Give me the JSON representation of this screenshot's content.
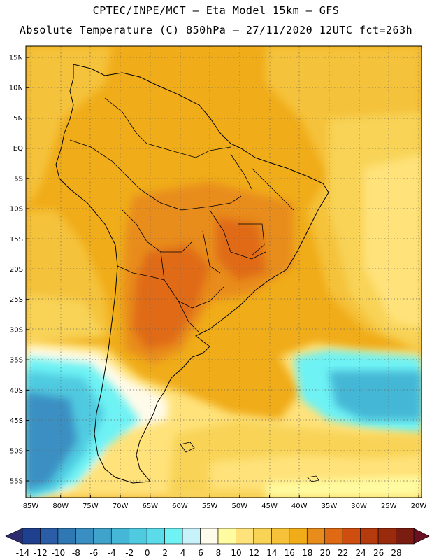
{
  "header": {
    "title_line1": "CPTEC/INPE/MCT –  Eta Model 15km – GFS",
    "title_line2": "Absolute Temperature (C) 850hPa – 27/11/2020 12UTC fct=263h"
  },
  "map": {
    "lat_labels": [
      "15N",
      "10N",
      "5N",
      "EQ",
      "5S",
      "10S",
      "15S",
      "20S",
      "25S",
      "30S",
      "35S",
      "40S",
      "45S",
      "50S",
      "55S"
    ],
    "lon_labels": [
      "85W",
      "80W",
      "75W",
      "70W",
      "65W",
      "60W",
      "55W",
      "50W",
      "45W",
      "40W",
      "35W",
      "30W",
      "25W",
      "20W"
    ],
    "region": "South America"
  },
  "colorbar": {
    "labels": [
      "-14",
      "-12",
      "-10",
      "-8",
      "-6",
      "-4",
      "-2",
      "0",
      "2",
      "4",
      "6",
      "8",
      "10",
      "12",
      "14",
      "16",
      "18",
      "20",
      "22",
      "24",
      "26",
      "28"
    ],
    "colors": [
      "#1f3f8f",
      "#2a5da6",
      "#2f78b4",
      "#3a8fc2",
      "#3fa3cc",
      "#45b7d6",
      "#4fcae0",
      "#5cdcea",
      "#6ef2f4",
      "#c8f2fa",
      "#fffbea",
      "#fffba0",
      "#ffe27a",
      "#f8d356",
      "#f5c23a",
      "#f0ac19",
      "#e88c1b",
      "#e06a14",
      "#cf4d0e",
      "#b53a0c",
      "#9a2a0c",
      "#7a1c10"
    ],
    "left_arrow_color": "#2c2c6e",
    "right_arrow_color": "#6a1020"
  }
}
